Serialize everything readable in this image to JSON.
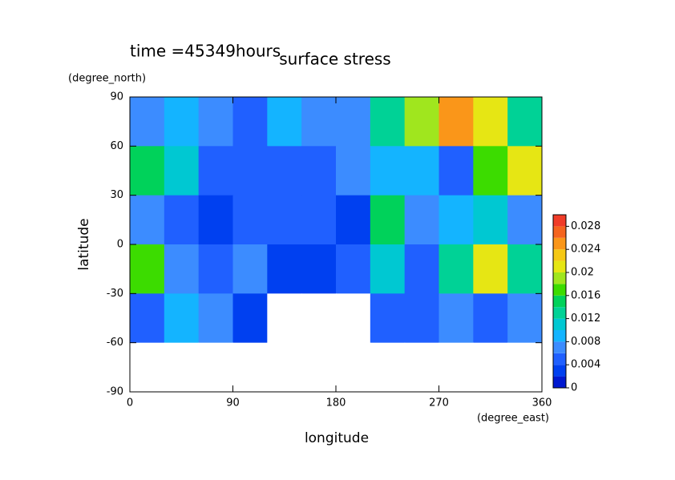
{
  "chart_data": {
    "type": "heatmap",
    "title": "surface stress",
    "subtitle": "time =45349hours",
    "xlabel": "longitude",
    "xunit": "(degree_east)",
    "ylabel": "latitude",
    "yunit": "(degree_north)",
    "x": [
      15,
      45,
      75,
      105,
      135,
      165,
      195,
      225,
      255,
      285,
      315,
      345
    ],
    "y": [
      75,
      45,
      15,
      -15,
      -45,
      -75
    ],
    "z": [
      [
        0.006,
        0.008,
        0.006,
        0.004,
        0.008,
        0.006,
        0.006,
        0.012,
        0.018,
        0.024,
        0.02,
        0.012
      ],
      [
        0.014,
        0.01,
        0.004,
        0.004,
        0.004,
        0.004,
        0.006,
        0.008,
        0.008,
        0.004,
        0.016,
        0.02
      ],
      [
        0.006,
        0.004,
        0.002,
        0.004,
        0.004,
        0.004,
        0.002,
        0.014,
        0.006,
        0.008,
        0.01,
        0.006
      ],
      [
        0.016,
        0.006,
        0.004,
        0.006,
        0.002,
        0.002,
        0.004,
        0.01,
        0.004,
        0.012,
        0.02,
        0.012
      ],
      [
        0.004,
        0.008,
        0.006,
        0.002,
        0,
        0,
        0,
        0.004,
        0.004,
        0.006,
        0.004,
        0.006
      ],
      [
        0,
        0,
        0,
        0,
        0,
        0,
        0,
        0,
        0,
        0,
        0,
        0
      ]
    ],
    "xlim": [
      0,
      360
    ],
    "xticks": [
      0,
      90,
      180,
      270,
      360
    ],
    "ylim": [
      -90,
      90
    ],
    "yticks": [
      -90,
      -60,
      -30,
      0,
      30,
      60,
      90
    ],
    "levels": [
      0,
      0.002,
      0.004,
      0.006,
      0.008,
      0.01,
      0.012,
      0.014,
      0.016,
      0.018,
      0.02,
      0.022,
      0.024,
      0.026,
      0.028,
      0.03
    ],
    "colors": [
      "#0018d0",
      "#0040f0",
      "#2060ff",
      "#3c8cff",
      "#14b4ff",
      "#00c8d2",
      "#00d296",
      "#00d25a",
      "#3cdc00",
      "#a0e61e",
      "#e6e614",
      "#f5c814",
      "#fa9619",
      "#f5641e",
      "#f03c28"
    ],
    "clim": [
      0,
      0.03
    ],
    "cticks": [
      0,
      0.004,
      0.008,
      0.012,
      0.016,
      0.02,
      0.024,
      0.028
    ]
  }
}
